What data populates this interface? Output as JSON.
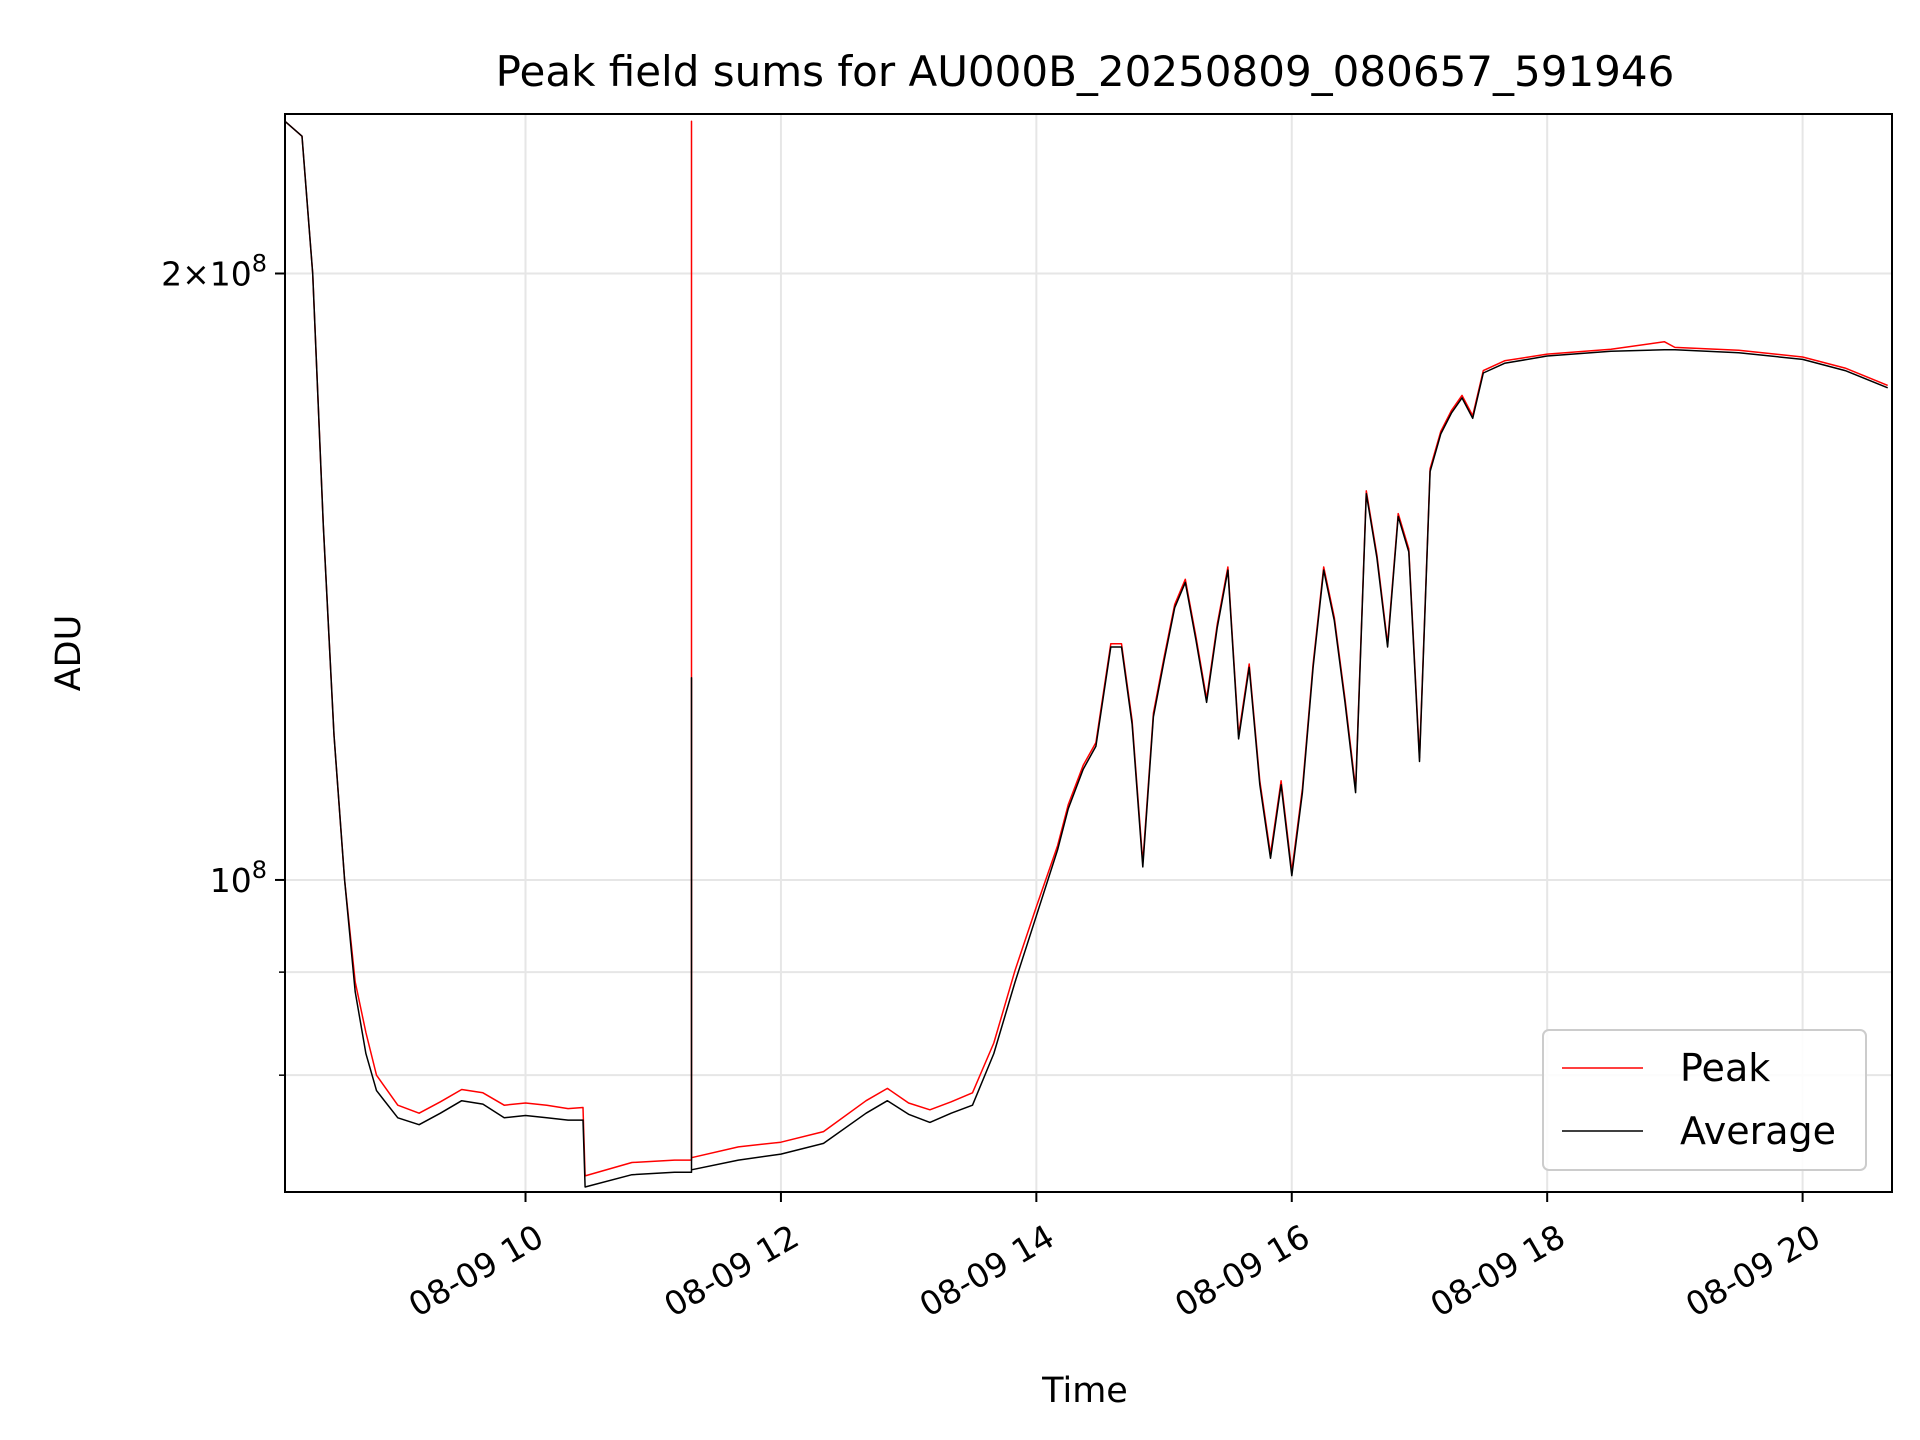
{
  "chart_data": {
    "type": "line",
    "title": "Peak field sums for AU000B_20250809_080657_591946",
    "xlabel": "Time",
    "ylabel": "ADU",
    "yscale": "log",
    "grid": true,
    "legend": {
      "placement": "lower-right",
      "entries": [
        "Peak",
        "Average"
      ]
    },
    "xlim": [
      "2025-08-09 08:07",
      "2025-08-09 20:42"
    ],
    "ylim": [
      70000000,
      240000000
    ],
    "x_ticks": [
      {
        "value": "2025-08-09 10:00",
        "label": "08-09 10"
      },
      {
        "value": "2025-08-09 12:00",
        "label": "08-09 12"
      },
      {
        "value": "2025-08-09 14:00",
        "label": "08-09 14"
      },
      {
        "value": "2025-08-09 16:00",
        "label": "08-09 16"
      },
      {
        "value": "2025-08-09 18:00",
        "label": "08-09 18"
      },
      {
        "value": "2025-08-09 20:00",
        "label": "08-09 20"
      }
    ],
    "y_major_ticks": [
      {
        "value": 100000000,
        "base": "10",
        "exp": "8",
        "mant": ""
      },
      {
        "value": 200000000,
        "base": "10",
        "exp": "8",
        "mant": "2"
      }
    ],
    "y_minor_ticks": [
      80000000,
      90000000
    ],
    "series": [
      {
        "name": "Peak",
        "color": "#ff0000",
        "points": [
          [
            "2025-08-09 08:07",
            238000000
          ],
          [
            "2025-08-09 08:15",
            234000000
          ],
          [
            "2025-08-09 08:20",
            200000000
          ],
          [
            "2025-08-09 08:25",
            150000000
          ],
          [
            "2025-08-09 08:30",
            118000000
          ],
          [
            "2025-08-09 08:35",
            100000000
          ],
          [
            "2025-08-09 08:40",
            89000000
          ],
          [
            "2025-08-09 08:45",
            84000000
          ],
          [
            "2025-08-09 08:50",
            80000000
          ],
          [
            "2025-08-09 09:00",
            77300000
          ],
          [
            "2025-08-09 09:10",
            76600000
          ],
          [
            "2025-08-09 09:20",
            77600000
          ],
          [
            "2025-08-09 09:30",
            78700000
          ],
          [
            "2025-08-09 09:40",
            78400000
          ],
          [
            "2025-08-09 09:50",
            77300000
          ],
          [
            "2025-08-09 10:00",
            77500000
          ],
          [
            "2025-08-09 10:10",
            77300000
          ],
          [
            "2025-08-09 10:20",
            77000000
          ],
          [
            "2025-08-09 10:27",
            77100000
          ],
          [
            "2025-08-09 10:28",
            71300000
          ],
          [
            "2025-08-09 10:50",
            72400000
          ],
          [
            "2025-08-09 11:10",
            72600000
          ],
          [
            "2025-08-09 11:18",
            72600000
          ],
          [
            "2025-08-09 11:18",
            238000000
          ],
          [
            "2025-08-09 11:18",
            72800000
          ],
          [
            "2025-08-09 11:40",
            73700000
          ],
          [
            "2025-08-09 12:00",
            74100000
          ],
          [
            "2025-08-09 12:20",
            75000000
          ],
          [
            "2025-08-09 12:40",
            77700000
          ],
          [
            "2025-08-09 12:50",
            78800000
          ],
          [
            "2025-08-09 13:00",
            77500000
          ],
          [
            "2025-08-09 13:10",
            76900000
          ],
          [
            "2025-08-09 13:20",
            77600000
          ],
          [
            "2025-08-09 13:30",
            78400000
          ],
          [
            "2025-08-09 13:40",
            83000000
          ],
          [
            "2025-08-09 13:50",
            90200000
          ],
          [
            "2025-08-09 14:00",
            97000000
          ],
          [
            "2025-08-09 14:10",
            104000000
          ],
          [
            "2025-08-09 14:15",
            109000000
          ],
          [
            "2025-08-09 14:22",
            114000000
          ],
          [
            "2025-08-09 14:28",
            117000000
          ],
          [
            "2025-08-09 14:35",
            131000000
          ],
          [
            "2025-08-09 14:40",
            131000000
          ],
          [
            "2025-08-09 14:45",
            120000000
          ],
          [
            "2025-08-09 14:50",
            102000000
          ],
          [
            "2025-08-09 14:55",
            121000000
          ],
          [
            "2025-08-09 15:00",
            129000000
          ],
          [
            "2025-08-09 15:05",
            137000000
          ],
          [
            "2025-08-09 15:10",
            141000000
          ],
          [
            "2025-08-09 15:15",
            132000000
          ],
          [
            "2025-08-09 15:20",
            123000000
          ],
          [
            "2025-08-09 15:25",
            134000000
          ],
          [
            "2025-08-09 15:30",
            143000000
          ],
          [
            "2025-08-09 15:35",
            118000000
          ],
          [
            "2025-08-09 15:40",
            128000000
          ],
          [
            "2025-08-09 15:45",
            112000000
          ],
          [
            "2025-08-09 15:50",
            103000000
          ],
          [
            "2025-08-09 15:55",
            112000000
          ],
          [
            "2025-08-09 16:00",
            101000000
          ],
          [
            "2025-08-09 16:05",
            111000000
          ],
          [
            "2025-08-09 16:10",
            128000000
          ],
          [
            "2025-08-09 16:15",
            143000000
          ],
          [
            "2025-08-09 16:20",
            135000000
          ],
          [
            "2025-08-09 16:25",
            123000000
          ],
          [
            "2025-08-09 16:30",
            111000000
          ],
          [
            "2025-08-09 16:35",
            156000000
          ],
          [
            "2025-08-09 16:40",
            145000000
          ],
          [
            "2025-08-09 16:45",
            131000000
          ],
          [
            "2025-08-09 16:50",
            152000000
          ],
          [
            "2025-08-09 16:55",
            146000000
          ],
          [
            "2025-08-09 17:00",
            115000000
          ],
          [
            "2025-08-09 17:05",
            160000000
          ],
          [
            "2025-08-09 17:10",
            167000000
          ],
          [
            "2025-08-09 17:15",
            171000000
          ],
          [
            "2025-08-09 17:20",
            174000000
          ],
          [
            "2025-08-09 17:25",
            170000000
          ],
          [
            "2025-08-09 17:30",
            179000000
          ],
          [
            "2025-08-09 17:40",
            181000000
          ],
          [
            "2025-08-09 18:00",
            182400000
          ],
          [
            "2025-08-09 18:30",
            183400000
          ],
          [
            "2025-08-09 18:55",
            185000000
          ],
          [
            "2025-08-09 19:00",
            183800000
          ],
          [
            "2025-08-09 19:30",
            183200000
          ],
          [
            "2025-08-09 20:00",
            181800000
          ],
          [
            "2025-08-09 20:20",
            179500000
          ],
          [
            "2025-08-09 20:40",
            176000000
          ]
        ]
      },
      {
        "name": "Average",
        "color": "#000000",
        "points": [
          [
            "2025-08-09 08:07",
            238000000
          ],
          [
            "2025-08-09 08:15",
            234000000
          ],
          [
            "2025-08-09 08:20",
            200000000
          ],
          [
            "2025-08-09 08:25",
            150000000
          ],
          [
            "2025-08-09 08:30",
            118000000
          ],
          [
            "2025-08-09 08:35",
            100000000
          ],
          [
            "2025-08-09 08:40",
            88000000
          ],
          [
            "2025-08-09 08:45",
            82000000
          ],
          [
            "2025-08-09 08:50",
            78600000
          ],
          [
            "2025-08-09 09:00",
            76200000
          ],
          [
            "2025-08-09 09:10",
            75600000
          ],
          [
            "2025-08-09 09:20",
            76600000
          ],
          [
            "2025-08-09 09:30",
            77700000
          ],
          [
            "2025-08-09 09:40",
            77400000
          ],
          [
            "2025-08-09 09:50",
            76200000
          ],
          [
            "2025-08-09 10:00",
            76400000
          ],
          [
            "2025-08-09 10:10",
            76200000
          ],
          [
            "2025-08-09 10:20",
            76000000
          ],
          [
            "2025-08-09 10:27",
            76000000
          ],
          [
            "2025-08-09 10:28",
            70400000
          ],
          [
            "2025-08-09 10:50",
            71400000
          ],
          [
            "2025-08-09 11:10",
            71600000
          ],
          [
            "2025-08-09 11:18",
            71600000
          ],
          [
            "2025-08-09 11:18",
            126000000
          ],
          [
            "2025-08-09 11:18",
            71800000
          ],
          [
            "2025-08-09 11:40",
            72600000
          ],
          [
            "2025-08-09 12:00",
            73100000
          ],
          [
            "2025-08-09 12:20",
            74000000
          ],
          [
            "2025-08-09 12:40",
            76600000
          ],
          [
            "2025-08-09 12:50",
            77700000
          ],
          [
            "2025-08-09 13:00",
            76500000
          ],
          [
            "2025-08-09 13:10",
            75800000
          ],
          [
            "2025-08-09 13:20",
            76600000
          ],
          [
            "2025-08-09 13:30",
            77300000
          ],
          [
            "2025-08-09 13:40",
            82000000
          ],
          [
            "2025-08-09 13:50",
            89000000
          ],
          [
            "2025-08-09 14:00",
            96000000
          ],
          [
            "2025-08-09 14:10",
            103500000
          ],
          [
            "2025-08-09 14:15",
            108500000
          ],
          [
            "2025-08-09 14:22",
            113500000
          ],
          [
            "2025-08-09 14:28",
            116500000
          ],
          [
            "2025-08-09 14:35",
            130500000
          ],
          [
            "2025-08-09 14:40",
            130500000
          ],
          [
            "2025-08-09 14:45",
            119500000
          ],
          [
            "2025-08-09 14:50",
            101500000
          ],
          [
            "2025-08-09 14:55",
            120500000
          ],
          [
            "2025-08-09 15:00",
            128500000
          ],
          [
            "2025-08-09 15:05",
            136500000
          ],
          [
            "2025-08-09 15:10",
            140500000
          ],
          [
            "2025-08-09 15:15",
            131500000
          ],
          [
            "2025-08-09 15:20",
            122500000
          ],
          [
            "2025-08-09 15:25",
            133500000
          ],
          [
            "2025-08-09 15:30",
            142500000
          ],
          [
            "2025-08-09 15:35",
            117500000
          ],
          [
            "2025-08-09 15:40",
            127500000
          ],
          [
            "2025-08-09 15:45",
            111500000
          ],
          [
            "2025-08-09 15:50",
            102500000
          ],
          [
            "2025-08-09 15:55",
            111500000
          ],
          [
            "2025-08-09 16:00",
            100500000
          ],
          [
            "2025-08-09 16:05",
            110500000
          ],
          [
            "2025-08-09 16:10",
            127500000
          ],
          [
            "2025-08-09 16:15",
            142500000
          ],
          [
            "2025-08-09 16:20",
            134500000
          ],
          [
            "2025-08-09 16:25",
            122500000
          ],
          [
            "2025-08-09 16:30",
            110500000
          ],
          [
            "2025-08-09 16:35",
            155500000
          ],
          [
            "2025-08-09 16:40",
            144500000
          ],
          [
            "2025-08-09 16:45",
            130500000
          ],
          [
            "2025-08-09 16:50",
            151500000
          ],
          [
            "2025-08-09 16:55",
            145500000
          ],
          [
            "2025-08-09 17:00",
            114500000
          ],
          [
            "2025-08-09 17:05",
            159500000
          ],
          [
            "2025-08-09 17:10",
            166500000
          ],
          [
            "2025-08-09 17:15",
            170500000
          ],
          [
            "2025-08-09 17:20",
            173500000
          ],
          [
            "2025-08-09 17:25",
            169500000
          ],
          [
            "2025-08-09 17:30",
            178500000
          ],
          [
            "2025-08-09 17:40",
            180500000
          ],
          [
            "2025-08-09 18:00",
            182000000
          ],
          [
            "2025-08-09 18:30",
            183000000
          ],
          [
            "2025-08-09 18:55",
            183300000
          ],
          [
            "2025-08-09 19:00",
            183300000
          ],
          [
            "2025-08-09 19:30",
            182700000
          ],
          [
            "2025-08-09 20:00",
            181300000
          ],
          [
            "2025-08-09 20:20",
            179000000
          ],
          [
            "2025-08-09 20:40",
            175500000
          ]
        ]
      }
    ]
  }
}
